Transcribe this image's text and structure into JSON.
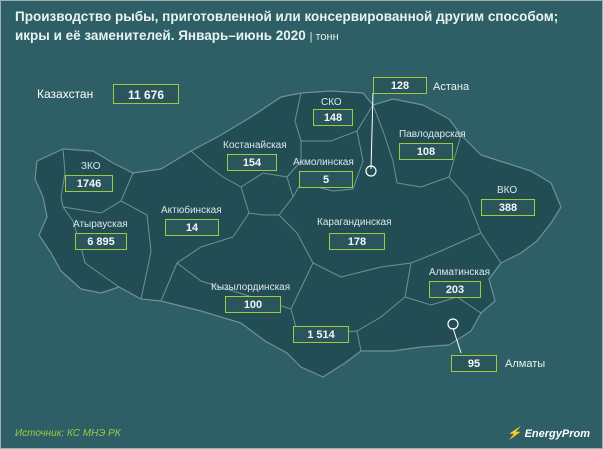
{
  "title": {
    "main": "Производство рыбы, приготовленной или консервированной другим способом; икры и её заменителей. Январь–июнь 2020",
    "unit": "| тонн"
  },
  "country": {
    "name": "Казахстан",
    "value": "11 676"
  },
  "regions": [
    {
      "name": "ЗКО",
      "value": "1746"
    },
    {
      "name": "Атырауская",
      "value": "6 895"
    },
    {
      "name": "Актюбинская",
      "value": "14"
    },
    {
      "name": "Костанайская",
      "value": "154"
    },
    {
      "name": "СКО",
      "value": "148"
    },
    {
      "name": "Акмолинская",
      "value": "5"
    },
    {
      "name": "Павлодарская",
      "value": "108"
    },
    {
      "name": "ВКО",
      "value": "388"
    },
    {
      "name": "Карагандинская",
      "value": "178"
    },
    {
      "name": "Кызылординская",
      "value": "100"
    },
    {
      "name": "",
      "value": "1 514"
    },
    {
      "name": "Алматинская",
      "value": "203"
    }
  ],
  "cities": [
    {
      "name": "Астана",
      "value": "128"
    },
    {
      "name": "Алматы",
      "value": "95"
    }
  ],
  "footer": {
    "source": "Источник: КС МНЭ РК",
    "logo": "EnergyProm"
  },
  "colors": {
    "background": "#2e5f66",
    "region_fill": "#234d55",
    "border": "#6d9296",
    "box_border": "#9ccc3c",
    "source_text": "#9ccc3c"
  }
}
